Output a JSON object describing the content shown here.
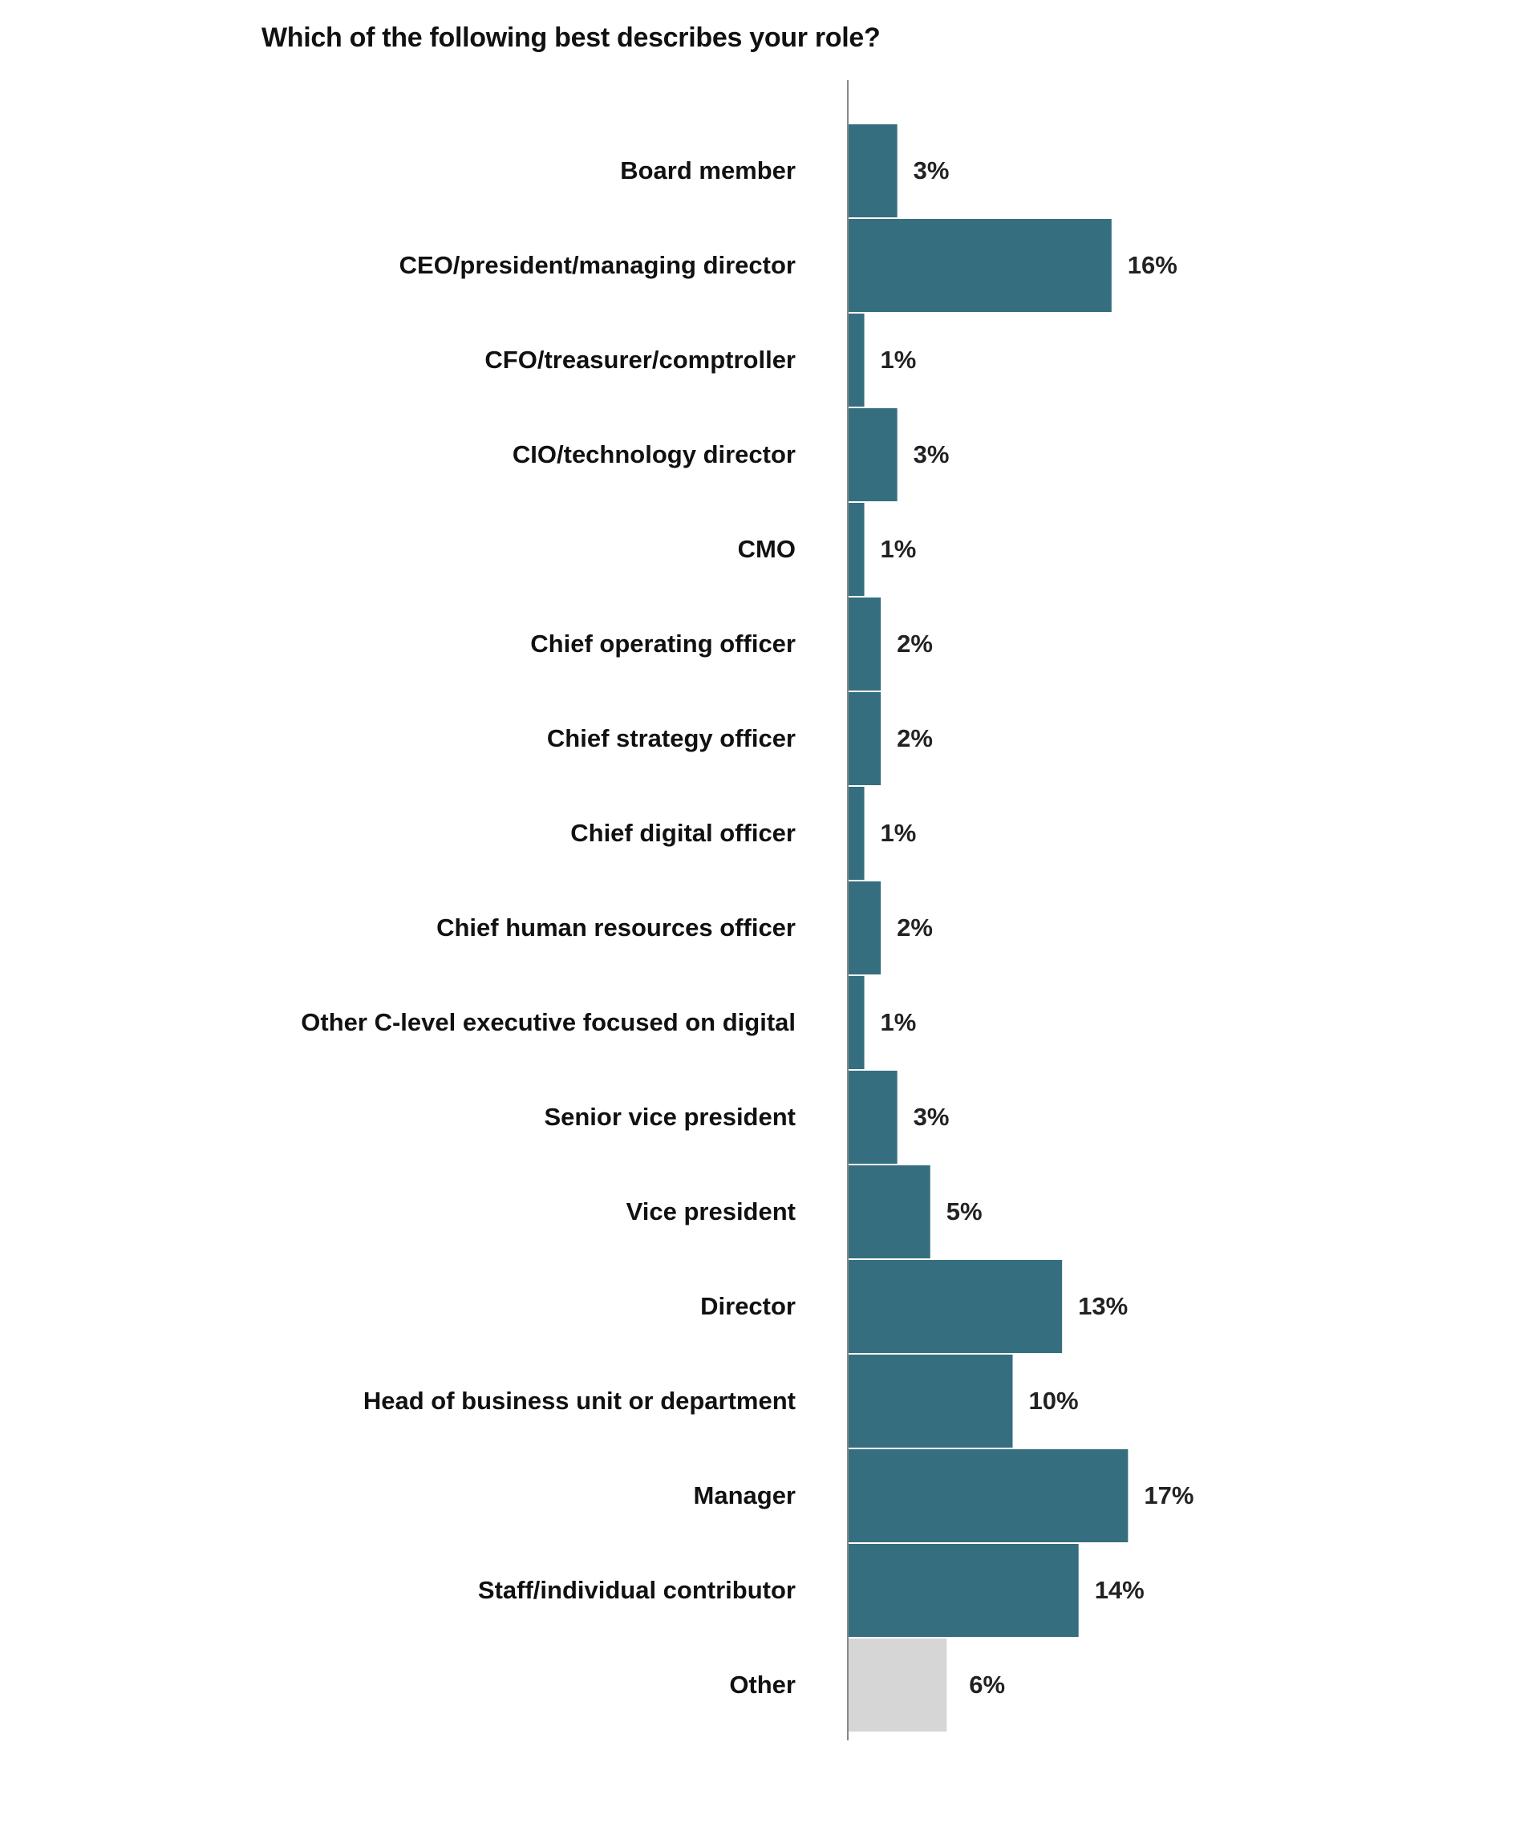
{
  "chart_data": {
    "type": "bar",
    "orientation": "horizontal",
    "title": "Which of the following best describes your role?",
    "categories": [
      "Board member",
      "CEO/president/managing director",
      "CFO/treasurer/comptroller",
      "CIO/technology director",
      "CMO",
      "Chief operating officer",
      "Chief strategy officer",
      "Chief digital officer",
      "Chief human resources officer",
      "Other C-level executive focused on digital",
      "Senior vice president",
      "Vice president",
      "Director",
      "Head of business unit or department",
      "Manager",
      "Staff/individual contributor",
      "Other"
    ],
    "values": [
      3,
      16,
      1,
      3,
      1,
      2,
      2,
      1,
      2,
      1,
      3,
      5,
      13,
      10,
      17,
      14,
      6
    ],
    "value_labels": [
      "3%",
      "16%",
      "1%",
      "3%",
      "1%",
      "2%",
      "2%",
      "1%",
      "2%",
      "1%",
      "3%",
      "5%",
      "13%",
      "10%",
      "17%",
      "14%",
      "6%"
    ],
    "unit": "%",
    "xlim": [
      0,
      17
    ],
    "grid": false,
    "legend": "none",
    "colors": {
      "bar": "#356e7e",
      "other_bar": "#d6d6d6",
      "axis": "#888888"
    }
  }
}
